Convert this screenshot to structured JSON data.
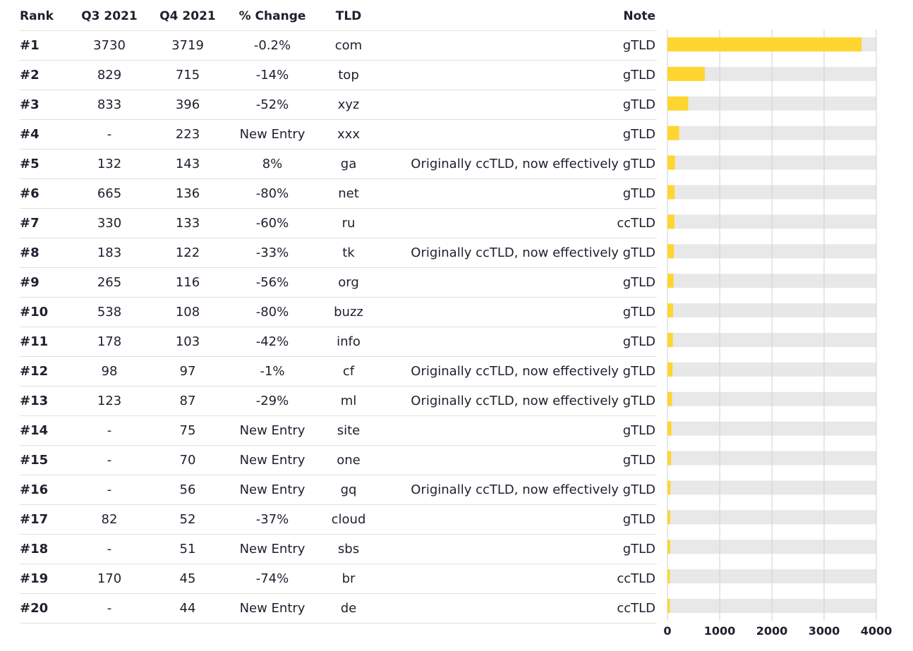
{
  "headers": {
    "rank": "Rank",
    "q3": "Q3 2021",
    "q4": "Q4 2021",
    "change": "% Change",
    "tld": "TLD",
    "note": "Note"
  },
  "rows": [
    {
      "rank": "#1",
      "q3": "3730",
      "q4": "3719",
      "change": "-0.2%",
      "tld": "com",
      "note": "gTLD"
    },
    {
      "rank": "#2",
      "q3": "829",
      "q4": "715",
      "change": "-14%",
      "tld": "top",
      "note": "gTLD"
    },
    {
      "rank": "#3",
      "q3": "833",
      "q4": "396",
      "change": "-52%",
      "tld": "xyz",
      "note": "gTLD"
    },
    {
      "rank": "#4",
      "q3": "-",
      "q4": "223",
      "change": "New Entry",
      "tld": "xxx",
      "note": "gTLD"
    },
    {
      "rank": "#5",
      "q3": "132",
      "q4": "143",
      "change": "8%",
      "tld": "ga",
      "note": "Originally ccTLD, now effectively gTLD"
    },
    {
      "rank": "#6",
      "q3": "665",
      "q4": "136",
      "change": "-80%",
      "tld": "net",
      "note": "gTLD"
    },
    {
      "rank": "#7",
      "q3": "330",
      "q4": "133",
      "change": "-60%",
      "tld": "ru",
      "note": "ccTLD"
    },
    {
      "rank": "#8",
      "q3": "183",
      "q4": "122",
      "change": "-33%",
      "tld": "tk",
      "note": "Originally ccTLD, now effectively gTLD"
    },
    {
      "rank": "#9",
      "q3": "265",
      "q4": "116",
      "change": "-56%",
      "tld": "org",
      "note": "gTLD"
    },
    {
      "rank": "#10",
      "q3": "538",
      "q4": "108",
      "change": "-80%",
      "tld": "buzz",
      "note": "gTLD"
    },
    {
      "rank": "#11",
      "q3": "178",
      "q4": "103",
      "change": "-42%",
      "tld": "info",
      "note": "gTLD"
    },
    {
      "rank": "#12",
      "q3": "98",
      "q4": "97",
      "change": "-1%",
      "tld": "cf",
      "note": "Originally ccTLD, now effectively gTLD"
    },
    {
      "rank": "#13",
      "q3": "123",
      "q4": "87",
      "change": "-29%",
      "tld": "ml",
      "note": "Originally ccTLD, now effectively gTLD"
    },
    {
      "rank": "#14",
      "q3": "-",
      "q4": "75",
      "change": "New Entry",
      "tld": "site",
      "note": "gTLD"
    },
    {
      "rank": "#15",
      "q3": "-",
      "q4": "70",
      "change": "New Entry",
      "tld": "one",
      "note": "gTLD"
    },
    {
      "rank": "#16",
      "q3": "-",
      "q4": "56",
      "change": "New Entry",
      "tld": "gq",
      "note": "Originally ccTLD, now effectively gTLD"
    },
    {
      "rank": "#17",
      "q3": "82",
      "q4": "52",
      "change": "-37%",
      "tld": "cloud",
      "note": "gTLD"
    },
    {
      "rank": "#18",
      "q3": "-",
      "q4": "51",
      "change": "New Entry",
      "tld": "sbs",
      "note": "gTLD"
    },
    {
      "rank": "#19",
      "q3": "170",
      "q4": "45",
      "change": "-74%",
      "tld": "br",
      "note": "ccTLD"
    },
    {
      "rank": "#20",
      "q3": "-",
      "q4": "44",
      "change": "New Entry",
      "tld": "de",
      "note": "ccTLD"
    }
  ],
  "chart_data": {
    "type": "bar",
    "orientation": "horizontal",
    "categories": [
      "com",
      "top",
      "xyz",
      "xxx",
      "ga",
      "net",
      "ru",
      "tk",
      "org",
      "buzz",
      "info",
      "cf",
      "ml",
      "site",
      "one",
      "gq",
      "cloud",
      "sbs",
      "br",
      "de"
    ],
    "values": [
      3719,
      715,
      396,
      223,
      143,
      136,
      133,
      122,
      116,
      108,
      103,
      97,
      87,
      75,
      70,
      56,
      52,
      51,
      45,
      44
    ],
    "xlim": [
      0,
      4000
    ],
    "xticks": [
      "0",
      "1000",
      "2000",
      "3000",
      "4000"
    ],
    "grid": true,
    "bar_color": "#ffd530",
    "track_color": "#e8e8e8",
    "grid_color": "#d0d0d0"
  }
}
